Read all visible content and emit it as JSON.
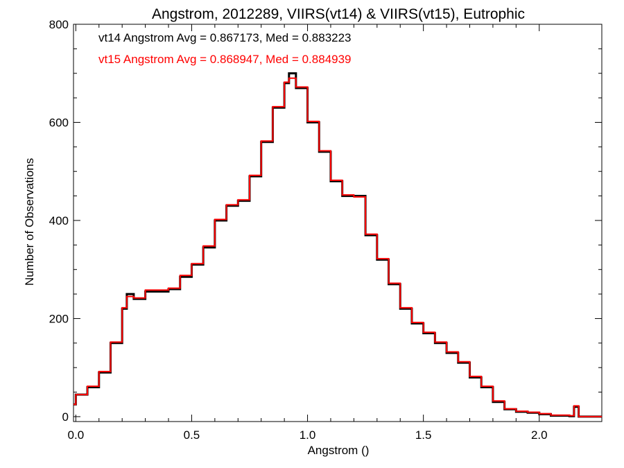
{
  "chart_data": {
    "type": "line",
    "step": true,
    "title": "Angstrom, 2012289, VIIRS(vt14) & VIIRS(vt15), Eutrophic",
    "xlabel": "Angstrom ()",
    "ylabel": "Number of Observations",
    "xlim": [
      -0.01,
      2.27
    ],
    "ylim": [
      -10,
      800
    ],
    "xticks": [
      0.0,
      0.5,
      1.0,
      1.5,
      2.0
    ],
    "xtick_labels": [
      "0.0",
      "0.5",
      "1.0",
      "1.5",
      "2.0"
    ],
    "yticks": [
      0,
      200,
      400,
      600,
      800
    ],
    "ytick_labels": [
      "0",
      "200",
      "400",
      "600",
      "800"
    ],
    "grid": false,
    "annotations": [
      {
        "text": "vt14 Angstrom Avg = 0.867173, Med = 0.883223",
        "color": "#000000"
      },
      {
        "text": "vt15 Angstrom Avg = 0.868947, Med = 0.884939",
        "color": "#ff0000"
      }
    ],
    "series": [
      {
        "color": "#000000",
        "x": [
          -0.01,
          0.0,
          0.05,
          0.1,
          0.15,
          0.2,
          0.22,
          0.25,
          0.3,
          0.35,
          0.4,
          0.45,
          0.5,
          0.55,
          0.6,
          0.65,
          0.7,
          0.75,
          0.8,
          0.85,
          0.9,
          0.92,
          0.95,
          1.0,
          1.05,
          1.1,
          1.15,
          1.2,
          1.25,
          1.3,
          1.35,
          1.4,
          1.45,
          1.5,
          1.55,
          1.6,
          1.65,
          1.7,
          1.75,
          1.8,
          1.85,
          1.9,
          1.95,
          2.0,
          2.05,
          2.1,
          2.13,
          2.15,
          2.17,
          2.27
        ],
        "y": [
          25,
          45,
          60,
          90,
          150,
          220,
          250,
          240,
          255,
          255,
          260,
          285,
          310,
          345,
          400,
          430,
          440,
          490,
          560,
          630,
          680,
          700,
          670,
          600,
          540,
          480,
          450,
          450,
          370,
          320,
          270,
          220,
          190,
          170,
          150,
          130,
          110,
          80,
          60,
          30,
          15,
          10,
          8,
          5,
          2,
          2,
          1,
          20,
          0,
          0
        ]
      },
      {
        "color": "#ff0000",
        "x": [
          -0.01,
          0.0,
          0.05,
          0.1,
          0.15,
          0.2,
          0.22,
          0.25,
          0.3,
          0.35,
          0.4,
          0.45,
          0.5,
          0.55,
          0.6,
          0.65,
          0.7,
          0.75,
          0.8,
          0.85,
          0.9,
          0.92,
          0.95,
          1.0,
          1.05,
          1.1,
          1.15,
          1.2,
          1.25,
          1.3,
          1.35,
          1.4,
          1.45,
          1.5,
          1.55,
          1.6,
          1.65,
          1.7,
          1.75,
          1.8,
          1.85,
          1.9,
          1.95,
          2.0,
          2.05,
          2.1,
          2.13,
          2.15,
          2.17,
          2.27
        ],
        "y": [
          25,
          45,
          62,
          92,
          152,
          222,
          245,
          242,
          258,
          258,
          262,
          288,
          312,
          348,
          402,
          432,
          442,
          492,
          562,
          632,
          682,
          690,
          672,
          602,
          542,
          482,
          452,
          448,
          372,
          322,
          272,
          222,
          192,
          172,
          152,
          132,
          112,
          82,
          62,
          32,
          16,
          11,
          9,
          6,
          3,
          3,
          2,
          22,
          0,
          0
        ]
      }
    ]
  }
}
